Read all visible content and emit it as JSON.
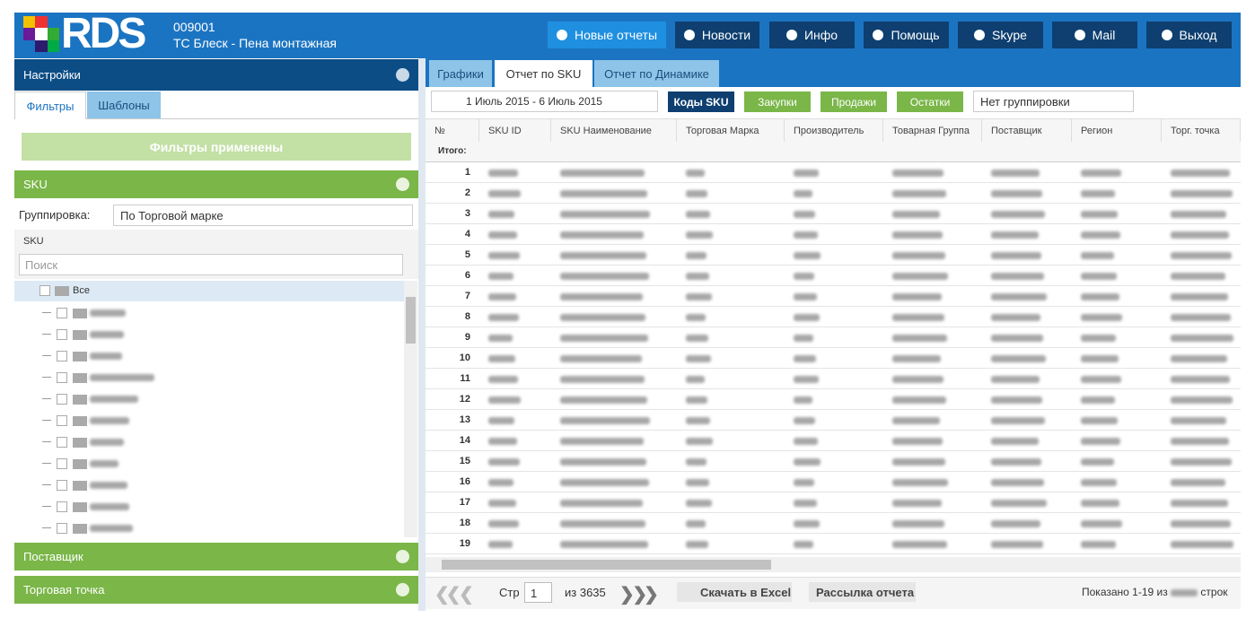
{
  "header": {
    "logo": "RDS",
    "code": "009001",
    "name": "ТС Блеск - Пена монтажная",
    "buttons": [
      "Новые отчеты",
      "Новости",
      "Инфо",
      "Помощь",
      "Skype",
      "Mail",
      "Выход"
    ]
  },
  "sidebar": {
    "title": "Настройки",
    "tabs": [
      "Фильтры",
      "Шаблоны"
    ],
    "apply_button": "Фильтры применены",
    "sku_section": "SKU",
    "grouping_label": "Группировка:",
    "grouping_value": "По Торговой марке",
    "sku_header": "SKU",
    "search_placeholder": "Поиск",
    "tree_root": "Все",
    "sections": [
      "Поставщик",
      "Торговая точка"
    ]
  },
  "report": {
    "tabs": [
      "Графики",
      "Отчет по SKU",
      "Отчет по Динамике"
    ],
    "date_range": "1 Июль 2015 - 6 Июль 2015",
    "buttons": [
      "Коды SKU",
      "Закупки",
      "Продажи",
      "Остатки"
    ],
    "grouping": "Нет группировки",
    "table": {
      "columns": [
        "№",
        "SKU ID",
        "SKU Наименование",
        "Торговая Марка",
        "Производитель",
        "Товарная Группа",
        "Поставщик",
        "Регион",
        "Торг. точка"
      ],
      "total_label": "Итого:",
      "row_numbers": [
        1,
        2,
        3,
        4,
        5,
        6,
        7,
        8,
        9,
        10,
        11,
        12,
        13,
        14,
        15,
        16,
        17,
        18,
        19
      ]
    },
    "footer": {
      "page_label": "Стр",
      "page": 1,
      "page_total": "из 3635",
      "excel": "Скачать в Excel",
      "mailing": "Рассылка отчета",
      "shown_prefix": "Показано 1-19 из",
      "shown_suffix": "строк"
    }
  }
}
